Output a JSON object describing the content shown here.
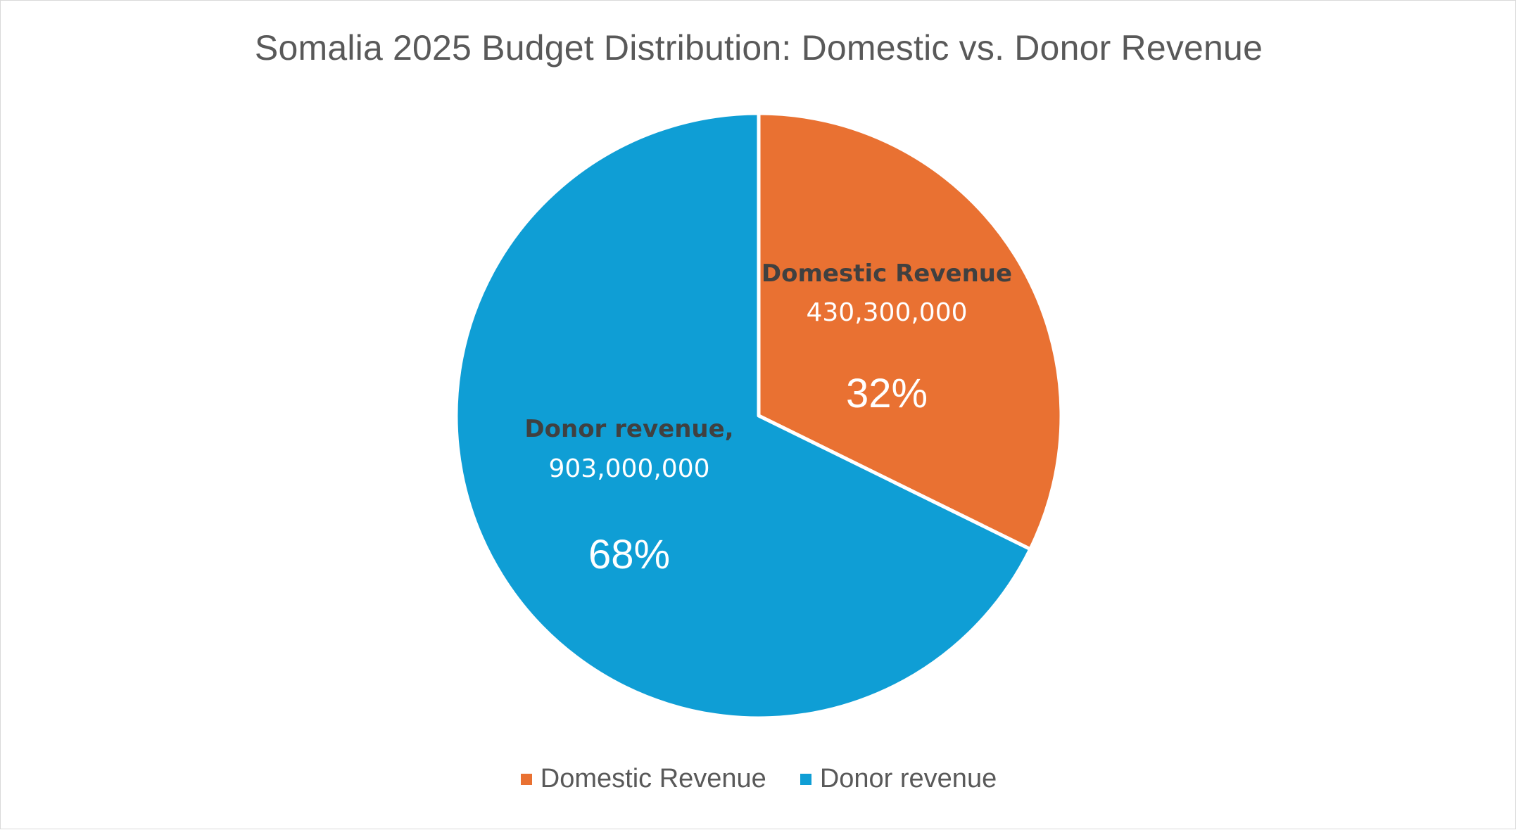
{
  "chart_data": {
    "type": "pie",
    "title": "Somalia 2025 Budget Distribution: Domestic vs. Donor Revenue",
    "slices": [
      {
        "name": "Domestic Revenue",
        "label_name": "Domestic Revenue",
        "value": 430300000,
        "value_label": "430,300,000",
        "percent_label": "32%",
        "color": "#e97132"
      },
      {
        "name": "Donor revenue",
        "label_name": "Donor revenue,",
        "value": 903000000,
        "value_label": "903,000,000",
        "percent_label": "68%",
        "color": "#0f9ed5"
      }
    ],
    "start_angle_deg": 0,
    "direction": "clockwise",
    "legend": {
      "position": "bottom",
      "entries": [
        "Domestic Revenue",
        "Donor revenue"
      ]
    }
  }
}
